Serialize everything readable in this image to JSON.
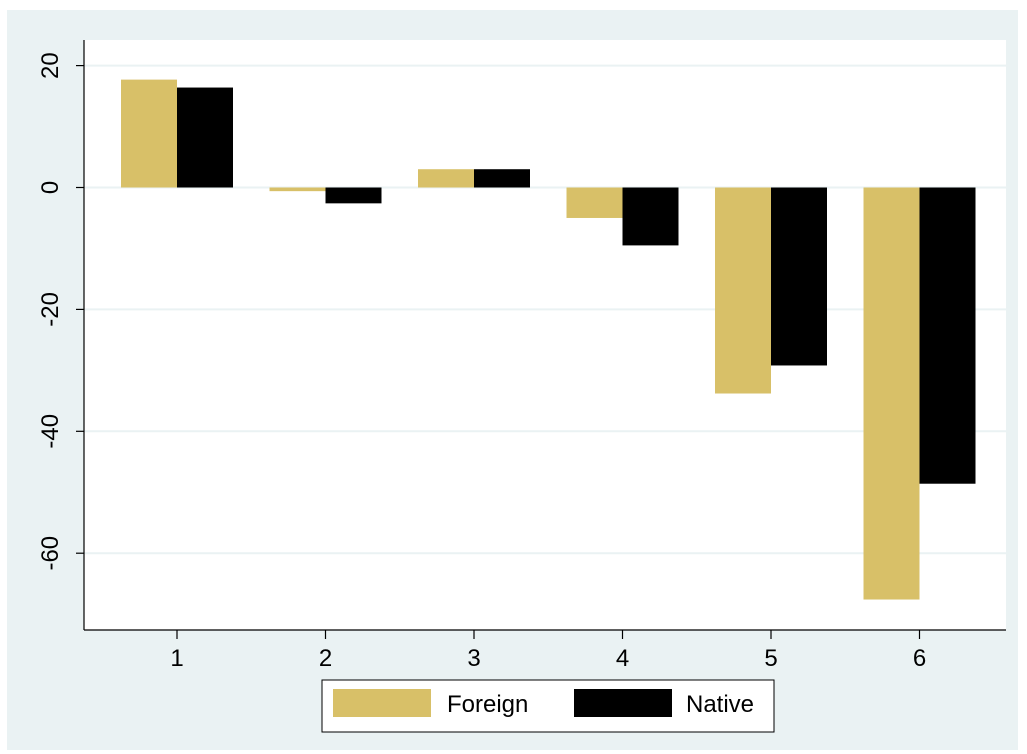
{
  "chart_data": {
    "type": "bar",
    "title": "",
    "xlabel": "",
    "ylabel": "",
    "categories": [
      "1",
      "2",
      "3",
      "4",
      "5",
      "6"
    ],
    "series": [
      {
        "name": "Foreign",
        "values": [
          17.7,
          -0.6,
          3.0,
          -5.0,
          -33.8,
          -67.6
        ]
      },
      {
        "name": "Native",
        "values": [
          16.4,
          -2.6,
          3.0,
          -9.5,
          -29.2,
          -48.6
        ]
      }
    ],
    "yticks": [
      20,
      0,
      -20,
      -40,
      -60
    ],
    "ytick_labels": [
      "20",
      "0",
      "-20",
      "-40",
      "-60"
    ],
    "ylim": [
      -72.6,
      24.2
    ],
    "grid": true,
    "legend": "bottom",
    "colors": {
      "background": "#eaf2f3",
      "plot_area": "#ffffff",
      "grid": "#eaf2f3",
      "Foreign": "#d8c068",
      "Native": "#000000"
    }
  }
}
